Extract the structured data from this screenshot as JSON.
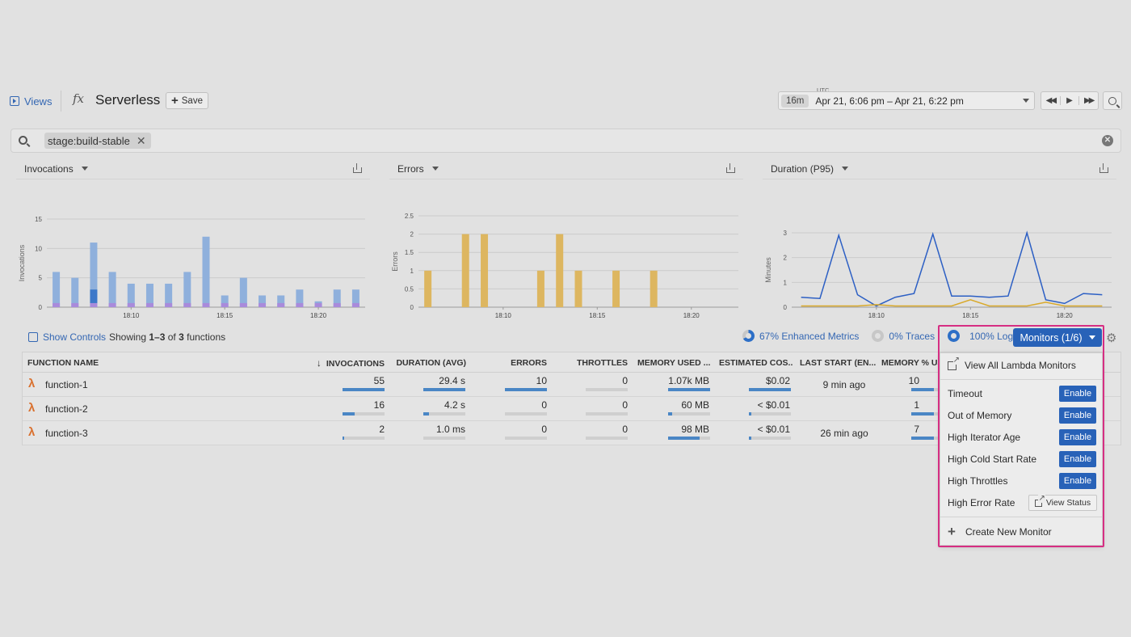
{
  "header": {
    "views_label": "Views",
    "fx_icon": "fx",
    "title": "Serverless",
    "save_label": "Save",
    "utc_label": "UTC",
    "time_pill": "16m",
    "time_range": "Apr 21, 6:06 pm – Apr 21, 6:22 pm"
  },
  "search": {
    "tag": "stage:build-stable"
  },
  "charts": {
    "invocations": {
      "title": "Invocations",
      "ylabel": "Invocations",
      "yticks": [
        "15",
        "10",
        "5",
        "0"
      ],
      "xticks": [
        "18:10",
        "18:15",
        "18:20"
      ]
    },
    "errors": {
      "title": "Errors",
      "ylabel": "Errors",
      "yticks": [
        "2.5",
        "2",
        "1.5",
        "1",
        "0.5",
        "0"
      ],
      "xticks": [
        "18:10",
        "18:15",
        "18:20"
      ]
    },
    "duration": {
      "title": "Duration (P95)",
      "ylabel": "Minutes",
      "yticks": [
        "3",
        "2",
        "1",
        "0"
      ],
      "xticks": [
        "18:10",
        "18:15",
        "18:20"
      ]
    }
  },
  "chart_data": [
    {
      "type": "bar",
      "title": "Invocations",
      "ylabel": "Invocations",
      "ylim": [
        0,
        15
      ],
      "x": [
        "18:06",
        "18:07",
        "18:08",
        "18:09",
        "18:10",
        "18:11",
        "18:12",
        "18:13",
        "18:14",
        "18:15",
        "18:16",
        "18:17",
        "18:18",
        "18:19",
        "18:20",
        "18:21",
        "18:22"
      ],
      "series": [
        {
          "values": [
            6,
            5,
            11,
            6,
            4,
            4,
            4,
            6,
            12,
            2,
            5,
            2,
            2,
            3,
            1,
            3,
            3
          ]
        }
      ]
    },
    {
      "type": "bar",
      "title": "Errors",
      "ylabel": "Errors",
      "ylim": [
        0,
        2.5
      ],
      "x": [
        "18:06",
        "18:07",
        "18:08",
        "18:09",
        "18:10",
        "18:11",
        "18:12",
        "18:13",
        "18:14",
        "18:15",
        "18:16",
        "18:17",
        "18:18",
        "18:19",
        "18:20",
        "18:21",
        "18:22"
      ],
      "series": [
        {
          "values": [
            1,
            0,
            2,
            2,
            0,
            0,
            1,
            2,
            1,
            0,
            1,
            0,
            1,
            0,
            0,
            0,
            0
          ]
        }
      ]
    },
    {
      "type": "line",
      "title": "Duration (P95)",
      "ylabel": "Minutes",
      "ylim": [
        0,
        3
      ],
      "x": [
        "18:06",
        "18:07",
        "18:08",
        "18:09",
        "18:10",
        "18:11",
        "18:12",
        "18:13",
        "18:14",
        "18:15",
        "18:16",
        "18:17",
        "18:18",
        "18:19",
        "18:20",
        "18:21",
        "18:22"
      ],
      "series": [
        {
          "values": [
            0.4,
            0.35,
            2.9,
            0.5,
            0.05,
            0.4,
            0.55,
            2.95,
            0.45,
            0.45,
            0.4,
            0.45,
            3.0,
            0.3,
            0.15,
            0.55,
            0.5
          ]
        },
        {
          "values": [
            0.05,
            0.05,
            0.05,
            0.05,
            0.1,
            0.05,
            0.05,
            0.05,
            0.05,
            0.3,
            0.05,
            0.05,
            0.05,
            0.2,
            0.05,
            0.05,
            0.05
          ]
        }
      ]
    }
  ],
  "controls": {
    "show_controls": "Show Controls",
    "showing_prefix": "Showing ",
    "showing_range": "1–3",
    "showing_of": " of ",
    "showing_total": "3",
    "showing_suffix": " functions",
    "enhanced_metrics": "67% Enhanced Metrics",
    "traces": "0% Traces",
    "logs": "100% Logs",
    "monitors_btn": "Monitors (1/6)"
  },
  "table": {
    "headers": [
      "FUNCTION NAME",
      "INVOCATIONS",
      "DURATION (AVG)",
      "ERRORS",
      "THROTTLES",
      "MEMORY USED ...",
      "ESTIMATED COS...",
      "LAST START (EN...",
      "MEMORY % US"
    ],
    "rows": [
      {
        "name": "function-1",
        "invocations": "55",
        "inv_frac": 1.0,
        "duration": "29.4 s",
        "dur_frac": 1.0,
        "errors": "10",
        "err_frac": 1.0,
        "throttles": "0",
        "thr_frac": 0,
        "memory": "1.07k MB",
        "mem_frac": 1.0,
        "cost": "$0.02",
        "cost_frac": 1.0,
        "last_start": "9 min ago",
        "mempct": "10"
      },
      {
        "name": "function-2",
        "invocations": "16",
        "inv_frac": 0.29,
        "duration": "4.2 s",
        "dur_frac": 0.14,
        "errors": "0",
        "err_frac": 0,
        "throttles": "0",
        "thr_frac": 0,
        "memory": "60 MB",
        "mem_frac": 0.1,
        "cost": "< $0.01",
        "cost_frac": 0.05,
        "last_start": "",
        "mempct": "1"
      },
      {
        "name": "function-3",
        "invocations": "2",
        "inv_frac": 0.04,
        "duration": "1.0 ms",
        "dur_frac": 0.0,
        "errors": "0",
        "err_frac": 0,
        "throttles": "0",
        "thr_frac": 0,
        "memory": "98 MB",
        "mem_frac": 0.75,
        "cost": "< $0.01",
        "cost_frac": 0.05,
        "last_start": "26 min ago",
        "mempct": "7"
      }
    ]
  },
  "monitors_menu": {
    "view_all": "View All Lambda Monitors",
    "items": [
      {
        "label": "Timeout",
        "action": "Enable"
      },
      {
        "label": "Out of Memory",
        "action": "Enable"
      },
      {
        "label": "High Iterator Age",
        "action": "Enable"
      },
      {
        "label": "High Cold Start Rate",
        "action": "Enable"
      },
      {
        "label": "High Throttles",
        "action": "Enable"
      },
      {
        "label": "High Error Rate",
        "action": "View Status"
      }
    ],
    "create": "Create New Monitor"
  },
  "colors": {
    "accent": "#2862b8",
    "link": "#3467b3",
    "invocation_bar": "#8fb0dc",
    "invocation_highlight": "#3d78c9",
    "invocation_base": "#a98bdb",
    "error_bar": "#ddb660",
    "duration_line": "#2c5fc4",
    "duration_line2": "#d9a92a",
    "highlight_border": "#d62e83"
  }
}
